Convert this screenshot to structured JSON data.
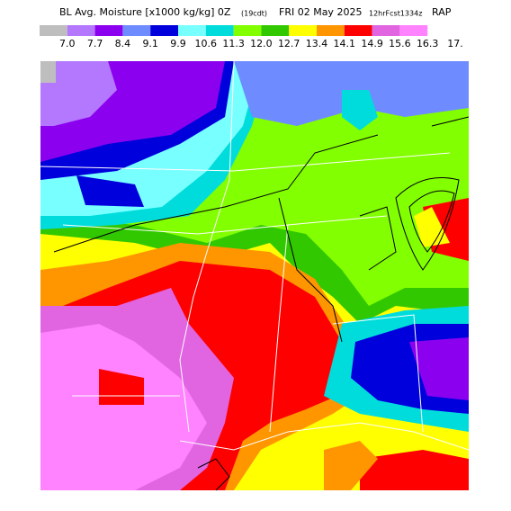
{
  "header": {
    "title": "BL Avg. Moisture [x1000 kg/kg] 0Z",
    "valid_note": "(19cdt)",
    "date": "FRI 02 May 2025",
    "forecast": "12hrFcst1334z",
    "model": "RAP"
  },
  "legend": {
    "labels": [
      "7.0",
      "7.7",
      "8.4",
      "9.1",
      "9.9",
      "10.6",
      "11.3",
      "12.0",
      "12.7",
      "13.4",
      "14.1",
      "14.9",
      "15.6",
      "16.3",
      "17."
    ],
    "colors": [
      "#bebebe",
      "#b478ff",
      "#8c00f0",
      "#6e8cff",
      "#0000dc",
      "#78ffff",
      "#00dcdc",
      "#82ff00",
      "#32c800",
      "#ffff00",
      "#ff9600",
      "#ff0000",
      "#e164e1",
      "#ff82ff"
    ]
  }
}
